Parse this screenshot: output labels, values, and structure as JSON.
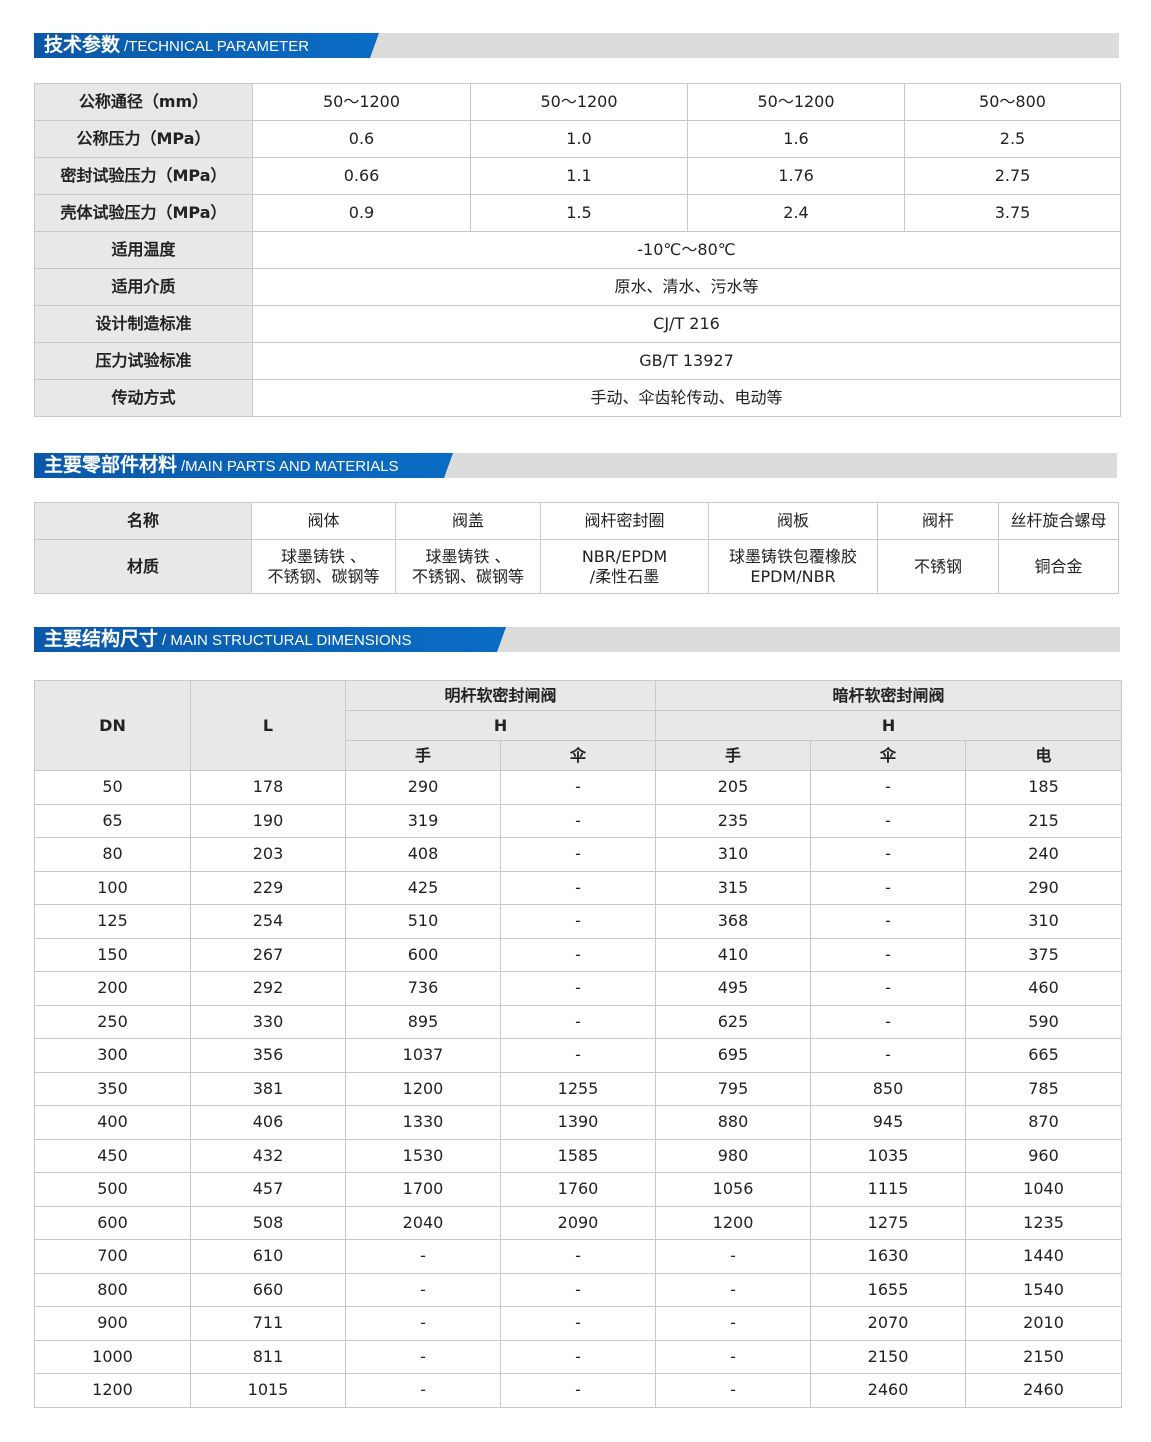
{
  "sections": [
    {
      "cn": "技术参数",
      "en": "/TECHNICAL PARAMETER"
    },
    {
      "cn": "主要零部件材料",
      "en": "/MAIN PARTS AND MATERIALS"
    },
    {
      "cn": "主要结构尺寸",
      "en": "/ MAIN STRUCTURAL DIMENSIONS"
    }
  ],
  "tech": {
    "rows4": [
      {
        "label": "公称通径（mm）",
        "values": [
          "50～1200",
          "50～1200",
          "50～1200",
          "50～800"
        ]
      },
      {
        "label": "公称压力（MPa）",
        "values": [
          "0.6",
          "1.0",
          "1.6",
          "2.5"
        ]
      },
      {
        "label": "密封试验压力（MPa）",
        "values": [
          "0.66",
          "1.1",
          "1.76",
          "2.75"
        ]
      },
      {
        "label": "壳体试验压力（MPa）",
        "values": [
          "0.9",
          "1.5",
          "2.4",
          "3.75"
        ]
      }
    ],
    "rows1": [
      {
        "label": "适用温度",
        "value": "-10℃～80℃"
      },
      {
        "label": "适用介质",
        "value": "原水、清水、污水等"
      },
      {
        "label": "设计制造标准",
        "value": "CJ/T 216"
      },
      {
        "label": "压力试验标准",
        "value": "GB/T 13927"
      },
      {
        "label": "传动方式",
        "value": "手动、伞齿轮传动、电动等"
      }
    ]
  },
  "parts": {
    "name_label": "名称",
    "material_label": "材质",
    "names": [
      "阀体",
      "阀盖",
      "阀杆密封圈",
      "阀板",
      "阀杆",
      "丝杆旋合螺母"
    ],
    "materials": [
      [
        "球墨铸铁 、",
        "不锈钢、碳钢等"
      ],
      [
        "球墨铸铁 、",
        "不锈钢、碳钢等"
      ],
      [
        "NBR/EPDM",
        "/柔性石墨"
      ],
      [
        "球墨铸铁包覆橡胶",
        "EPDM/NBR"
      ],
      [
        "不锈钢"
      ],
      [
        "铜合金"
      ]
    ]
  },
  "dims": {
    "dn": "DN",
    "l": "L",
    "group1": "明杆软密封闸阀",
    "group2": "暗杆软密封闸阀",
    "h": "H",
    "sub1": [
      "手",
      "伞"
    ],
    "sub2": [
      "手",
      "伞",
      "电"
    ],
    "rows": [
      [
        "50",
        "178",
        "290",
        "-",
        "205",
        "-",
        "185"
      ],
      [
        "65",
        "190",
        "319",
        "-",
        "235",
        "-",
        "215"
      ],
      [
        "80",
        "203",
        "408",
        "-",
        "310",
        "-",
        "240"
      ],
      [
        "100",
        "229",
        "425",
        "-",
        "315",
        "-",
        "290"
      ],
      [
        "125",
        "254",
        "510",
        "-",
        "368",
        "-",
        "310"
      ],
      [
        "150",
        "267",
        "600",
        "-",
        "410",
        "-",
        "375"
      ],
      [
        "200",
        "292",
        "736",
        "-",
        "495",
        "-",
        "460"
      ],
      [
        "250",
        "330",
        "895",
        "-",
        "625",
        "-",
        "590"
      ],
      [
        "300",
        "356",
        "1037",
        "-",
        "695",
        "-",
        "665"
      ],
      [
        "350",
        "381",
        "1200",
        "1255",
        "795",
        "850",
        "785"
      ],
      [
        "400",
        "406",
        "1330",
        "1390",
        "880",
        "945",
        "870"
      ],
      [
        "450",
        "432",
        "1530",
        "1585",
        "980",
        "1035",
        "960"
      ],
      [
        "500",
        "457",
        "1700",
        "1760",
        "1056",
        "1115",
        "1040"
      ],
      [
        "600",
        "508",
        "2040",
        "2090",
        "1200",
        "1275",
        "1235"
      ],
      [
        "700",
        "610",
        "-",
        "-",
        "-",
        "1630",
        "1440"
      ],
      [
        "800",
        "660",
        "-",
        "-",
        "-",
        "1655",
        "1540"
      ],
      [
        "900",
        "711",
        "-",
        "-",
        "-",
        "2070",
        "2010"
      ],
      [
        "1000",
        "811",
        "-",
        "-",
        "-",
        "2150",
        "2150"
      ],
      [
        "1200",
        "1015",
        "-",
        "-",
        "-",
        "2460",
        "2460"
      ]
    ]
  }
}
